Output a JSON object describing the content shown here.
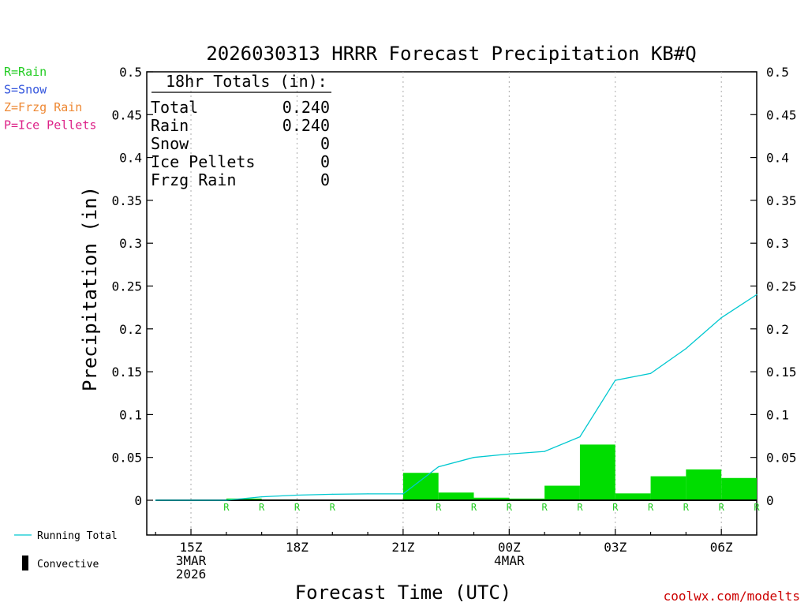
{
  "title": "2026030313 HRRR Forecast Precipitation KB#Q",
  "footer": "coolwx.com/modelts",
  "legend_left": {
    "items": [
      {
        "label": "R=Rain",
        "color": "#22cc22"
      },
      {
        "label": "S=Snow",
        "color": "#3355dd"
      },
      {
        "label": "Z=Frzg Rain",
        "color": "#ee8833"
      },
      {
        "label": "P=Ice Pellets",
        "color": "#dd2288"
      }
    ]
  },
  "legend_bottom": {
    "running_total": "Running Total",
    "convective": "Convective"
  },
  "totals": {
    "header": "18hr Totals (in):",
    "rows": [
      {
        "label": "Total",
        "value": "0.240"
      },
      {
        "label": "Rain",
        "value": "0.240"
      },
      {
        "label": "Snow",
        "value": "0"
      },
      {
        "label": "Ice Pellets",
        "value": "0"
      },
      {
        "label": "Frzg Rain",
        "value": "0"
      }
    ]
  },
  "chart_data": {
    "type": "bar",
    "title": "2026030313 HRRR Forecast Precipitation KB#Q",
    "xlabel": "Forecast Time (UTC)",
    "ylabel": "Precipitation (in)",
    "ylim": [
      -0.04,
      0.5
    ],
    "yticks": [
      "0.5",
      "0.45",
      "0.4",
      "0.35",
      "0.3",
      "0.25",
      "0.2",
      "0.15",
      "0.1",
      "0.05",
      "0"
    ],
    "ytick_values": [
      0.5,
      0.45,
      0.4,
      0.35,
      0.3,
      0.25,
      0.2,
      0.15,
      0.1,
      0.05,
      0
    ],
    "xlim": [
      13.75,
      31
    ],
    "xticks": [
      {
        "x": 15,
        "lines": [
          "15Z",
          "3MAR",
          "2026"
        ]
      },
      {
        "x": 18,
        "lines": [
          "18Z"
        ]
      },
      {
        "x": 21,
        "lines": [
          "21Z"
        ]
      },
      {
        "x": 24,
        "lines": [
          "00Z",
          "4MAR"
        ]
      },
      {
        "x": 27,
        "lines": [
          "03Z"
        ]
      },
      {
        "x": 30,
        "lines": [
          "06Z"
        ]
      }
    ],
    "grid": "dotted vertical at ticks",
    "bars": {
      "name": "Rain",
      "color": "#00dd00",
      "hours": [
        14,
        15,
        16,
        17,
        18,
        19,
        20,
        21,
        22,
        23,
        24,
        25,
        26,
        27,
        28,
        29,
        30,
        31
      ],
      "values": [
        0,
        0,
        0,
        0.002,
        0.001,
        0.0005,
        0,
        0,
        0.032,
        0.009,
        0.003,
        0.002,
        0.017,
        0.065,
        0.008,
        0.028,
        0.036,
        0.026
      ]
    },
    "running_total": {
      "color": "#00c8d0",
      "hours": [
        14,
        15,
        16,
        17,
        18,
        19,
        20,
        21,
        22,
        23,
        24,
        25,
        26,
        27,
        28,
        29,
        30,
        31
      ],
      "values": [
        0,
        0,
        0,
        0.004,
        0.006,
        0.007,
        0.0075,
        0.0075,
        0.039,
        0.05,
        0.054,
        0.057,
        0.074,
        0.14,
        0.148,
        0.177,
        0.213,
        0.24
      ]
    },
    "convective": {
      "hours": [
        14,
        15,
        16,
        17,
        18,
        19,
        20,
        21,
        22,
        23,
        24,
        25,
        26,
        27,
        28,
        29,
        30,
        31
      ],
      "values": [
        0,
        0,
        0,
        0,
        0,
        0,
        0,
        0,
        0,
        0,
        0,
        0,
        0,
        0,
        0,
        0,
        0,
        0
      ]
    },
    "type_labels": {
      "hours": [
        16,
        17,
        18,
        19,
        22,
        23,
        24,
        25,
        26,
        27,
        28,
        29,
        30,
        31
      ],
      "label": "R"
    }
  }
}
